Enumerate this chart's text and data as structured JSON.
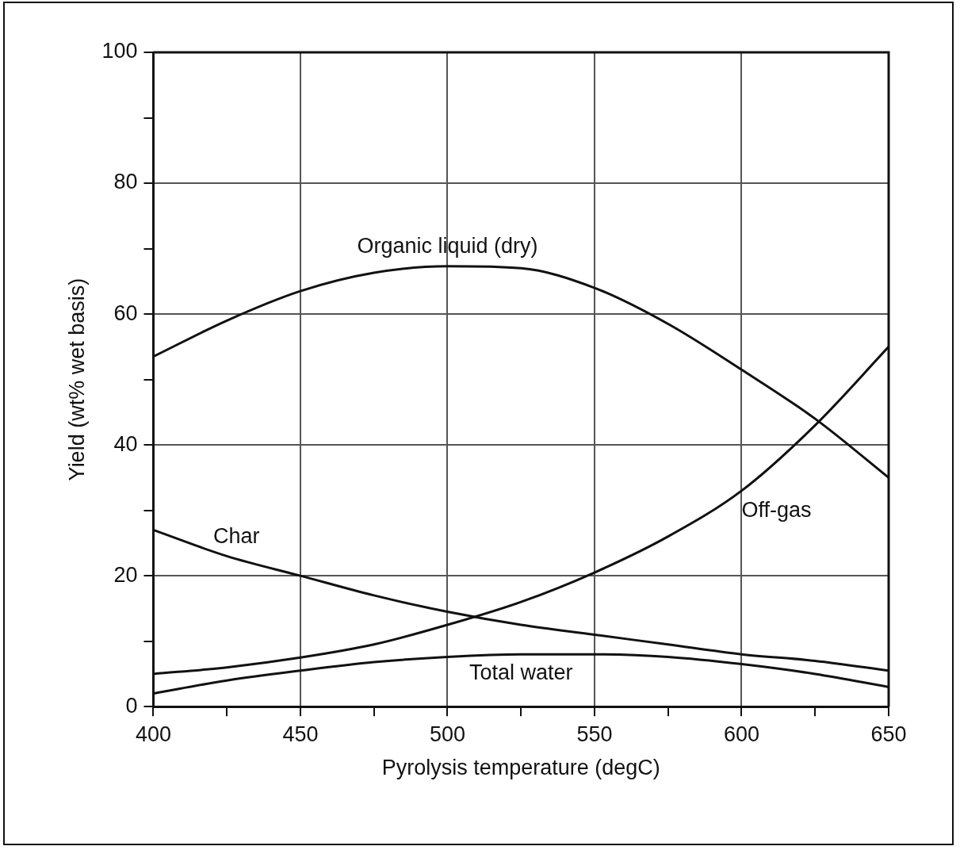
{
  "chart_data": {
    "type": "line",
    "xlabel": "Pyrolysis temperature (degC)",
    "ylabel": "Yield (wt% wet basis)",
    "x": [
      400,
      425,
      450,
      475,
      500,
      525,
      550,
      575,
      600,
      625,
      650
    ],
    "series": [
      {
        "name": "Organic liquid (dry)",
        "color": "#111111",
        "values": [
          53.5,
          59,
          63.5,
          66.3,
          67.3,
          67,
          64,
          58.5,
          51.5,
          44,
          35
        ]
      },
      {
        "name": "Off-gas",
        "color": "#111111",
        "values": [
          5,
          6,
          7.5,
          9.5,
          12.5,
          16,
          20.5,
          26,
          33,
          43,
          55
        ]
      },
      {
        "name": "Char",
        "color": "#111111",
        "values": [
          27,
          23,
          20,
          17,
          14.5,
          12.5,
          11,
          9.5,
          8,
          7,
          5.5
        ]
      },
      {
        "name": "Total water",
        "color": "#111111",
        "values": [
          2,
          4,
          5.5,
          6.8,
          7.6,
          8,
          8,
          7.6,
          6.5,
          5,
          3
        ]
      }
    ],
    "xlim": [
      400,
      650
    ],
    "xticks": [
      400,
      {
        "value": 425,
        "label": null
      },
      450,
      {
        "value": 475,
        "label": null
      },
      500,
      {
        "value": 525,
        "label": null
      },
      550,
      {
        "value": 575,
        "label": null
      },
      600,
      {
        "value": 625,
        "label": null
      },
      650
    ],
    "ylim": [
      0,
      100
    ],
    "yticks": [
      0,
      {
        "value": 10,
        "label": null
      },
      20,
      {
        "value": 30,
        "label": null
      },
      40,
      {
        "value": 50,
        "label": null
      },
      60,
      {
        "value": 70,
        "label": null
      },
      80,
      {
        "value": 90,
        "label": null
      },
      100
    ],
    "grid": true,
    "legend": false,
    "marker": "none",
    "line_style": "solid"
  }
}
